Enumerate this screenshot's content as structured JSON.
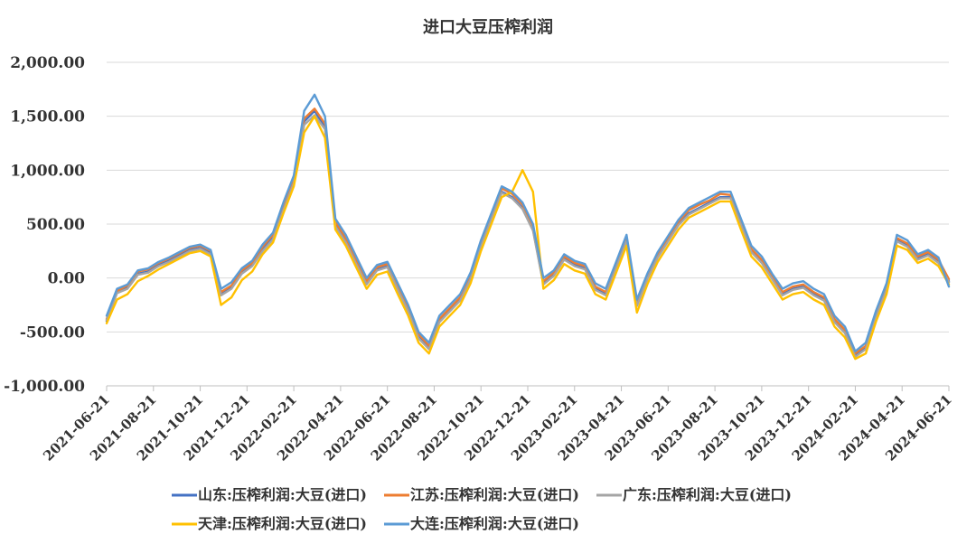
{
  "chart_data": {
    "type": "line",
    "title": "进口大豆压榨利润",
    "xlabel": "",
    "ylabel": "",
    "ylim": [
      -1000,
      2000
    ],
    "y_ticks": [
      "2,000.00",
      "1,500.00",
      "1,000.00",
      "500.00",
      "0.00",
      "-500.00",
      "-1,000.00"
    ],
    "y_tick_values": [
      2000,
      1500,
      1000,
      500,
      0,
      -500,
      -1000
    ],
    "x_ticks": [
      "2021-06-21",
      "2021-08-21",
      "2021-10-21",
      "2021-12-21",
      "2022-02-21",
      "2022-04-21",
      "2022-06-21",
      "2022-08-21",
      "2022-10-21",
      "2022-12-21",
      "2023-02-21",
      "2023-04-21",
      "2023-06-21",
      "2023-08-21",
      "2023-10-21",
      "2023-12-21",
      "2024-02-21",
      "2024-04-21",
      "2024-06-21"
    ],
    "grid": true,
    "legend_position": "bottom",
    "series": [
      {
        "name": "山东:压榨利润:大豆(进口)",
        "color": "#4472C4",
        "values": [
          -400,
          -130,
          -90,
          40,
          60,
          120,
          160,
          210,
          260,
          280,
          230,
          -150,
          -90,
          50,
          120,
          260,
          380,
          650,
          900,
          1450,
          1550,
          1400,
          500,
          350,
          150,
          -50,
          80,
          110,
          -100,
          -300,
          -550,
          -650,
          -400,
          -300,
          -200,
          0,
          300,
          550,
          800,
          750,
          650,
          450,
          -50,
          30,
          180,
          120,
          90,
          -100,
          -150,
          100,
          350,
          -250,
          0,
          200,
          350,
          500,
          600,
          650,
          700,
          750,
          750,
          500,
          250,
          150,
          0,
          -150,
          -100,
          -80,
          -150,
          -200,
          -400,
          -500,
          -720,
          -650,
          -350,
          -100,
          350,
          300,
          180,
          220,
          150,
          -30
        ]
      },
      {
        "name": "江苏:压榨利润:大豆(进口)",
        "color": "#ED7D31",
        "values": [
          -380,
          -120,
          -70,
          60,
          80,
          140,
          180,
          230,
          280,
          300,
          250,
          -130,
          -70,
          70,
          140,
          290,
          400,
          680,
          920,
          1480,
          1570,
          1430,
          520,
          370,
          170,
          -30,
          100,
          130,
          -80,
          -280,
          -520,
          -630,
          -380,
          -280,
          -180,
          20,
          320,
          570,
          830,
          780,
          680,
          470,
          -30,
          50,
          200,
          140,
          110,
          -80,
          -130,
          120,
          370,
          -230,
          20,
          220,
          370,
          520,
          630,
          680,
          720,
          780,
          770,
          520,
          270,
          170,
          20,
          -130,
          -80,
          -60,
          -130,
          -180,
          -380,
          -480,
          -700,
          -630,
          -330,
          -80,
          370,
          320,
          200,
          240,
          170,
          -10
        ]
      },
      {
        "name": "广东:压榨利润:大豆(进口)",
        "color": "#A5A5A5",
        "values": [
          -390,
          -140,
          -100,
          30,
          50,
          110,
          150,
          200,
          250,
          270,
          220,
          -160,
          -100,
          40,
          110,
          250,
          360,
          630,
          880,
          1420,
          1510,
          1380,
          480,
          330,
          130,
          -60,
          70,
          100,
          -110,
          -310,
          -560,
          -660,
          -410,
          -310,
          -210,
          -10,
          290,
          540,
          790,
          740,
          640,
          440,
          -60,
          20,
          170,
          110,
          80,
          -110,
          -160,
          90,
          340,
          -260,
          -10,
          190,
          340,
          490,
          590,
          640,
          690,
          740,
          740,
          490,
          240,
          140,
          -10,
          -160,
          -110,
          -90,
          -160,
          -210,
          -410,
          -510,
          -730,
          -660,
          -360,
          -110,
          340,
          290,
          170,
          210,
          140,
          -40
        ]
      },
      {
        "name": "天津:压榨利润:大豆(进口)",
        "color": "#FFC000",
        "values": [
          -420,
          -200,
          -150,
          -30,
          20,
          80,
          130,
          180,
          230,
          250,
          200,
          -250,
          -180,
          -20,
          60,
          220,
          330,
          600,
          850,
          1350,
          1500,
          1300,
          450,
          300,
          100,
          -100,
          30,
          60,
          -150,
          -350,
          -600,
          -700,
          -450,
          -350,
          -250,
          -50,
          250,
          500,
          750,
          800,
          1000,
          800,
          -100,
          -20,
          130,
          70,
          40,
          -150,
          -200,
          50,
          300,
          -320,
          -60,
          150,
          300,
          450,
          560,
          610,
          660,
          710,
          710,
          450,
          200,
          100,
          -50,
          -200,
          -150,
          -130,
          -200,
          -250,
          -450,
          -550,
          -750,
          -700,
          -400,
          -150,
          300,
          260,
          140,
          180,
          110,
          -60
        ]
      },
      {
        "name": "大连:压榨利润:大豆(进口)",
        "color": "#5B9BD5",
        "values": [
          -350,
          -100,
          -60,
          70,
          90,
          150,
          190,
          240,
          290,
          310,
          260,
          -100,
          -40,
          90,
          160,
          310,
          420,
          700,
          950,
          1550,
          1700,
          1500,
          550,
          400,
          200,
          0,
          120,
          150,
          -50,
          -250,
          -500,
          -600,
          -350,
          -250,
          -150,
          50,
          350,
          600,
          850,
          800,
          700,
          500,
          0,
          70,
          220,
          160,
          130,
          -50,
          -100,
          150,
          400,
          -200,
          40,
          240,
          390,
          540,
          650,
          700,
          750,
          800,
          800,
          550,
          300,
          200,
          40,
          -100,
          -50,
          -30,
          -100,
          -150,
          -350,
          -450,
          -680,
          -600,
          -300,
          -50,
          400,
          350,
          220,
          260,
          190,
          -80
        ]
      }
    ]
  }
}
